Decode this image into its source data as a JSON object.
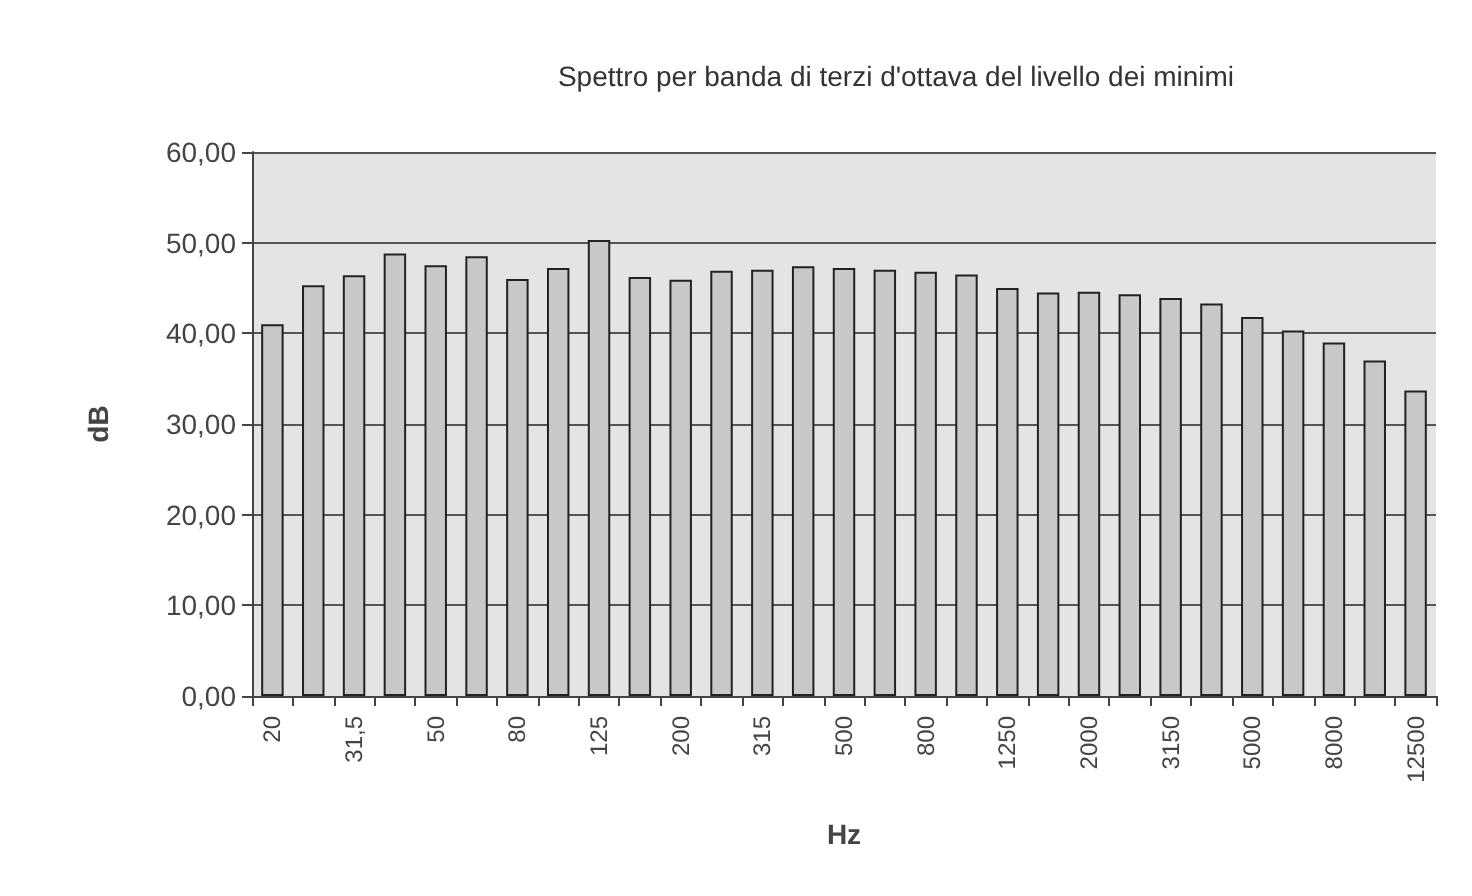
{
  "chart_data": {
    "type": "bar",
    "title": "Spettro per banda di terzi d'ottava del livello dei minimi",
    "xlabel": "Hz",
    "ylabel": "dB",
    "categories": [
      "20",
      null,
      "31,5",
      null,
      "50",
      null,
      "80",
      null,
      "125",
      null,
      "200",
      null,
      "315",
      null,
      "500",
      null,
      "800",
      null,
      "1250",
      null,
      "2000",
      null,
      "3150",
      null,
      "5000",
      null,
      "8000",
      null,
      "12500"
    ],
    "values": [
      41.0,
      45.3,
      46.4,
      48.8,
      47.5,
      48.5,
      46.0,
      47.2,
      50.3,
      46.2,
      45.9,
      46.9,
      47.0,
      47.4,
      47.2,
      47.0,
      46.8,
      46.5,
      45.0,
      44.5,
      44.6,
      44.3,
      43.9,
      43.3,
      41.8,
      40.3,
      39.0,
      37.0,
      33.7
    ],
    "color": "#c8c8c8",
    "ylim": [
      0,
      60
    ],
    "yticks": [
      {
        "value": 0,
        "label": "0,00"
      },
      {
        "value": 10,
        "label": "10,00"
      },
      {
        "value": 20,
        "label": "20,00"
      },
      {
        "value": 30,
        "label": "30,00"
      },
      {
        "value": 40,
        "label": "40,00"
      },
      {
        "value": 50,
        "label": "50,00"
      },
      {
        "value": 60,
        "label": "60,00"
      }
    ],
    "grid": "y"
  }
}
